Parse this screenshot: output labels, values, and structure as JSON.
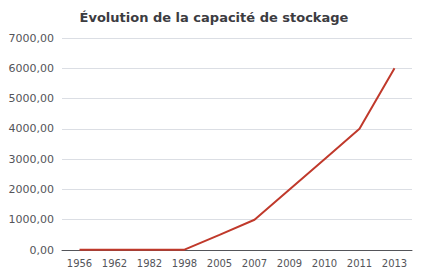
{
  "chart_data": {
    "type": "line",
    "title": "Évolution de la capacité de stockage",
    "categories": [
      "1956",
      "1962",
      "1982",
      "1998",
      "2005",
      "2007",
      "2009",
      "2010",
      "2011",
      "2013"
    ],
    "values": [
      5,
      5,
      5,
      10,
      500,
      1000,
      2000,
      3000,
      4000,
      6000
    ],
    "color": "#c0392b",
    "ylim": [
      0,
      7000
    ],
    "yticks": [
      {
        "value": 0,
        "label": "0,00"
      },
      {
        "value": 1000,
        "label": "1000,00"
      },
      {
        "value": 2000,
        "label": "2000,00"
      },
      {
        "value": 3000,
        "label": "3000,00"
      },
      {
        "value": 4000,
        "label": "4000,00"
      },
      {
        "value": 5000,
        "label": "5000,00"
      },
      {
        "value": 6000,
        "label": "6000,00"
      },
      {
        "value": 7000,
        "label": "7000,00"
      }
    ],
    "grid": true
  }
}
